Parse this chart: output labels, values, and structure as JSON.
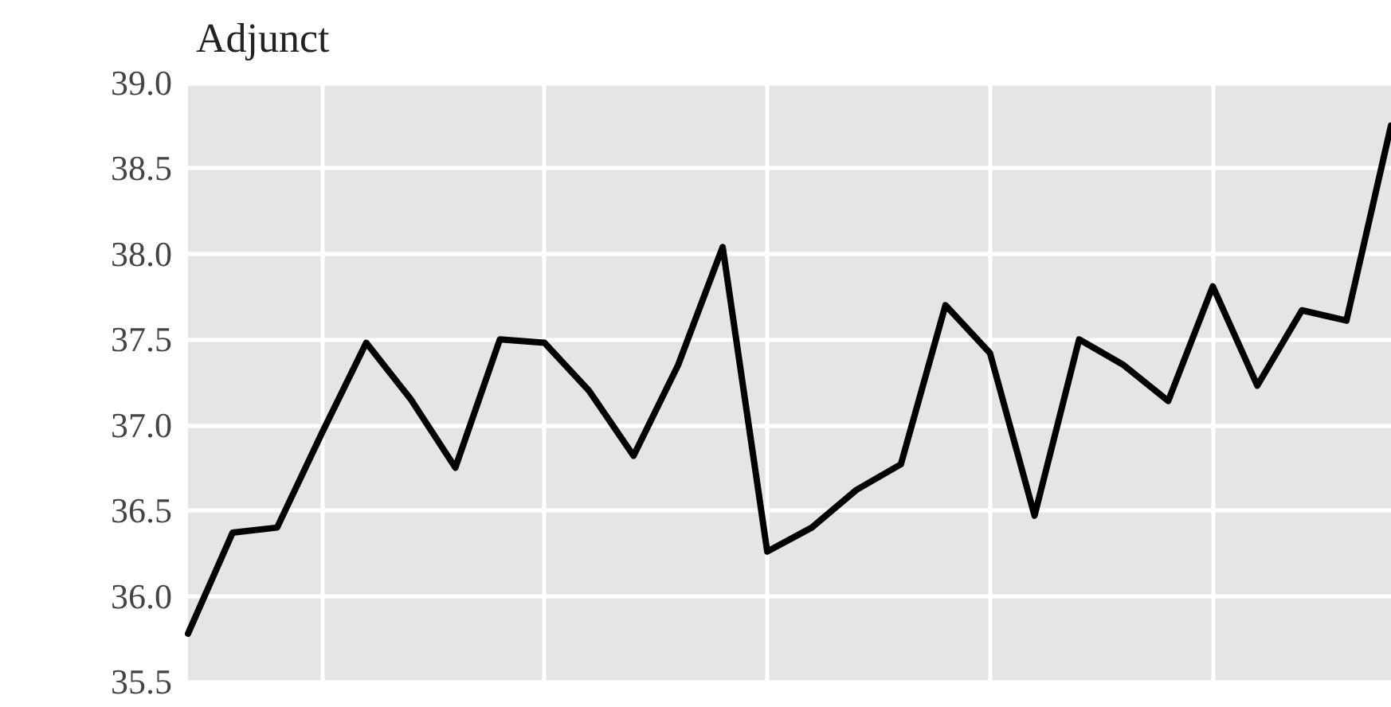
{
  "chart_data": {
    "type": "line",
    "title": "Adjunct",
    "categories": [
      null,
      null,
      null,
      null,
      null,
      null,
      null,
      null,
      null,
      null,
      null,
      null,
      null,
      null,
      null,
      null,
      null,
      null,
      null,
      null,
      null,
      null,
      null,
      null,
      null,
      null,
      null,
      null
    ],
    "series": [
      {
        "color": "#000000",
        "values": [
          35.78,
          36.37,
          36.4,
          36.95,
          37.48,
          37.15,
          36.75,
          37.5,
          37.48,
          37.2,
          36.82,
          37.35,
          38.04,
          36.26,
          36.4,
          36.62,
          36.77,
          37.7,
          37.42,
          36.47,
          37.5,
          37.35,
          37.14,
          37.81,
          37.23,
          37.67,
          37.61,
          38.75
        ]
      }
    ],
    "ylim": [
      35.5,
      39.0
    ],
    "yticks": [
      {
        "value": 35.5,
        "label": "35.5"
      },
      {
        "value": 36,
        "label": "36.0"
      },
      {
        "value": 36.5,
        "label": "36.5"
      },
      {
        "value": 37,
        "label": "37.0"
      },
      {
        "value": 37.5,
        "label": "37.5"
      },
      {
        "value": 38,
        "label": "38.0"
      },
      {
        "value": 38.5,
        "label": "38.5"
      },
      {
        "value": 39,
        "label": "39.0"
      }
    ],
    "grid": true,
    "tick_labels": "y",
    "marker": "none",
    "line_style": "solid"
  }
}
